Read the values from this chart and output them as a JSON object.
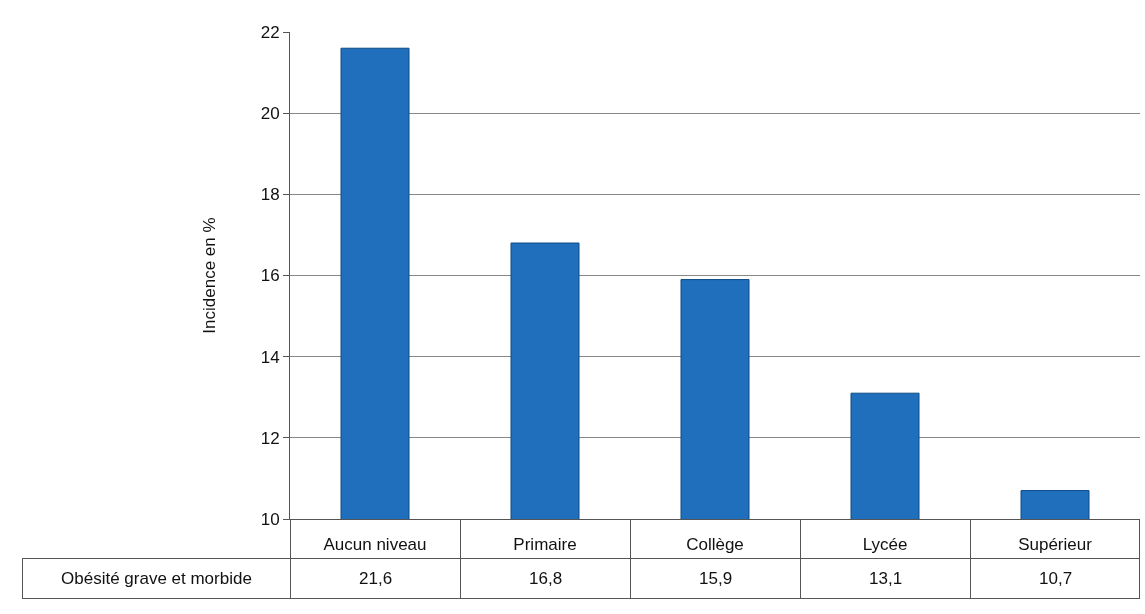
{
  "chart_data": {
    "type": "bar",
    "ylabel": "Incidence en %",
    "categories": [
      "Aucun niveau",
      "Primaire",
      "Collège",
      "Lycée",
      "Supérieur"
    ],
    "series": [
      {
        "name": "Obésité grave et morbide",
        "color": "#1f6fbd",
        "values": [
          21.6,
          16.8,
          15.9,
          13.1,
          10.7
        ],
        "value_labels": [
          "21,6",
          "16,8",
          "15,9",
          "13,1",
          "10,7"
        ]
      }
    ],
    "ylim": [
      10,
      22
    ],
    "yticks": [
      10,
      12,
      14,
      16,
      18,
      20,
      22
    ],
    "grid": "y",
    "legend": false
  }
}
